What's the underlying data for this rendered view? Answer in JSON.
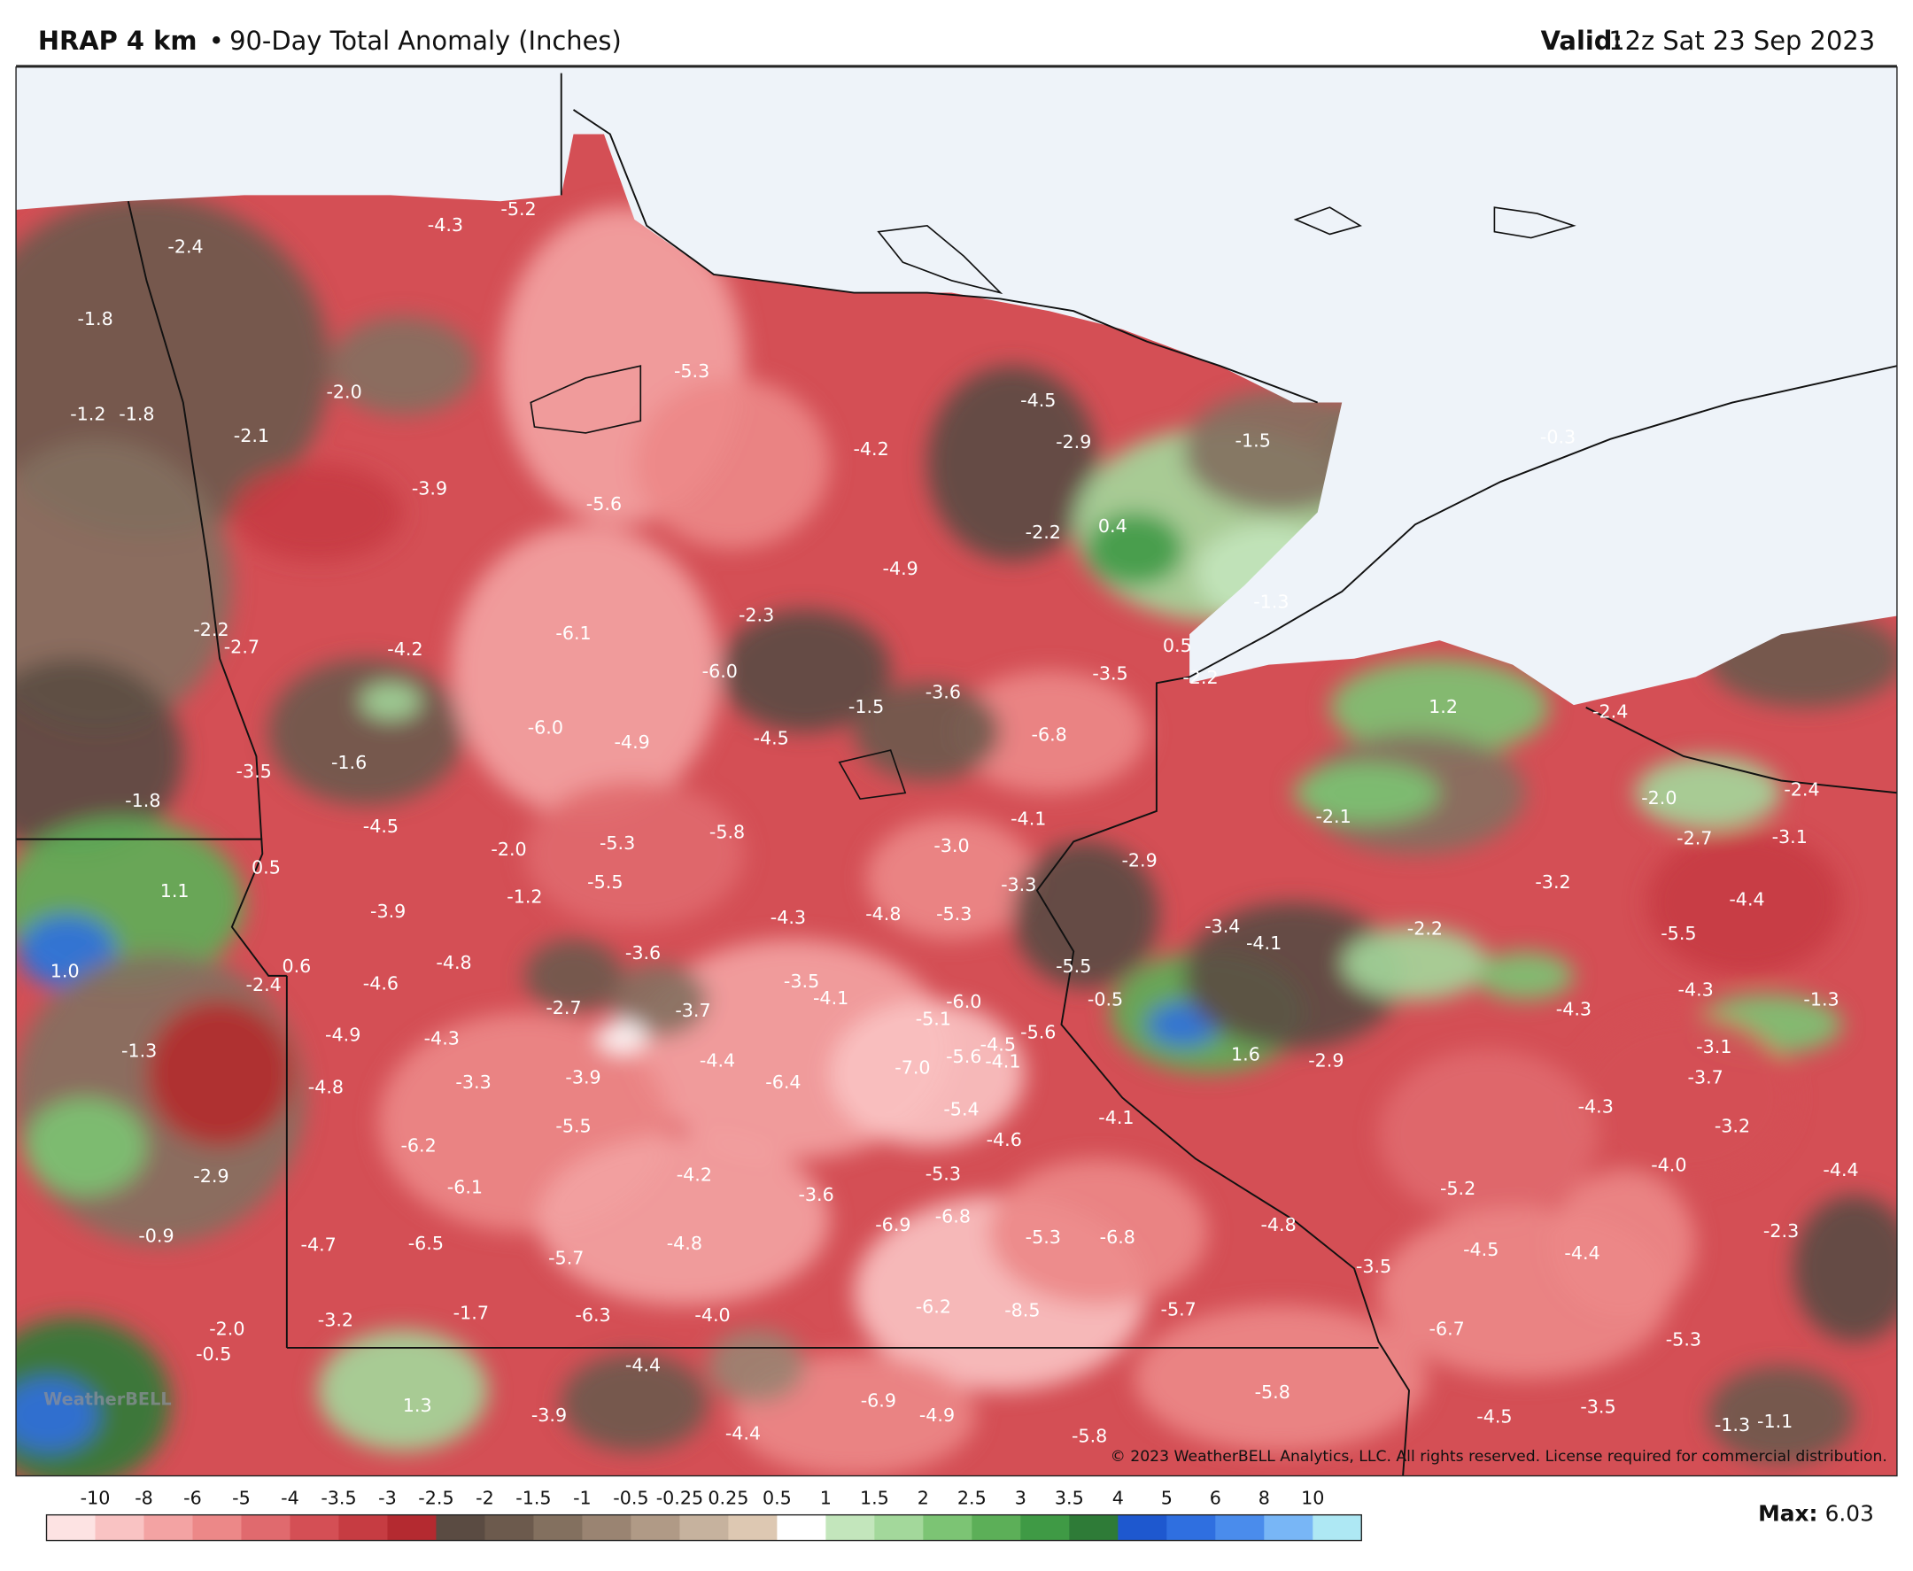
{
  "header": {
    "product": "HRAP 4 km",
    "separator": "•",
    "title": "90-Day Total Anomaly (Inches)",
    "valid_label": "Valid:",
    "valid_value": "12z Sat 23 Sep 2023"
  },
  "map": {
    "labels": [
      "-4.3",
      "-5.2",
      "-2.4",
      "-1.8",
      "-2.0",
      "-5.3",
      "-4.5",
      "-1.2",
      "-1.8",
      "-2.1",
      "-4.2",
      "-2.9",
      "-1.5",
      "-0.3",
      "-3.9",
      "-5.6",
      "-2.2",
      "0.4",
      "-4.9",
      "-1.3",
      "-2.3",
      "-2.2",
      "-2.7",
      "-4.2",
      "-6.1",
      "0.5",
      "-6.0",
      "-2.2",
      "-3.5",
      "-3.6",
      "-1.5",
      "1.2",
      "-2.4",
      "-6.0",
      "-4.9",
      "-4.5",
      "-6.8",
      "-3.5",
      "-1.6",
      "-2.0",
      "-2.4",
      "-1.8",
      "-4.1",
      "-2.1",
      "-4.5",
      "-5.8",
      "-2.7",
      "-3.1",
      "-2.0",
      "-5.3",
      "-3.0",
      "0.5",
      "-2.9",
      "-3.2",
      "1.1",
      "-1.2",
      "-5.5",
      "-3.3",
      "-4.4",
      "-3.9",
      "-4.3",
      "-4.8",
      "-5.3",
      "-3.4",
      "-4.1",
      "-2.2",
      "-5.5",
      "-3.6",
      "-4.8",
      "0.6",
      "-5.5",
      "1.0",
      "-2.4",
      "-4.6",
      "-3.5",
      "-4.1",
      "-0.5",
      "-4.3",
      "-4.3",
      "-1.3",
      "-2.7",
      "-3.7",
      "-6.0",
      "-5.1",
      "-5.6",
      "-4.9",
      "-4.3",
      "-4.5",
      "-1.3",
      "-3.1",
      "-5.6",
      "-4.1",
      "1.6",
      "-2.9",
      "-4.4",
      "-7.0",
      "-3.7",
      "-4.8",
      "-3.3",
      "-3.9",
      "-6.4",
      "-5.4",
      "-4.1",
      "-4.3",
      "-3.2",
      "-5.5",
      "-6.2",
      "-4.6",
      "-2.9",
      "-6.1",
      "-4.2",
      "-3.6",
      "-5.3",
      "-5.2",
      "-4.0",
      "-4.4",
      "-6.9",
      "-6.8",
      "-4.8",
      "-2.3",
      "-0.9",
      "-4.7",
      "-6.5",
      "-5.7",
      "-4.8",
      "-5.3",
      "-6.8",
      "-4.5",
      "-4.4",
      "-3.5",
      "-2.0",
      "-3.2",
      "-1.7",
      "-6.3",
      "-4.0",
      "-6.2",
      "-8.5",
      "-5.7",
      "-6.7",
      "-5.3",
      "-0.5",
      "-4.4",
      "1.3",
      "-6.9",
      "-5.8",
      "-3.9",
      "-4.9",
      "-4.5",
      "-3.5",
      "-1.3",
      "-1.1",
      "-4.4",
      "-5.8"
    ],
    "copyright": "© 2023 WeatherBELL Analytics, LLC. All rights reserved. License required for commercial distribution.",
    "watermark": "WeatherBELL"
  },
  "colorbar": {
    "ticks": [
      -10,
      -8,
      -6,
      -5,
      -4,
      -3.5,
      -3,
      -2.5,
      -2,
      -1.5,
      -1,
      -0.5,
      -0.25,
      0.25,
      0.5,
      1,
      1.5,
      2,
      2.5,
      3,
      3.5,
      4,
      5,
      6,
      8,
      10
    ],
    "colors": [
      "#fde3e3",
      "#f9c3c3",
      "#f3a3a3",
      "#ec8888",
      "#e06a6e",
      "#d44f55",
      "#c63c42",
      "#b42a30",
      "#5a4b42",
      "#6c5a4d",
      "#83705f",
      "#9a8472",
      "#b09a86",
      "#c6b29e",
      "#ddc8b2",
      "#ffffff",
      "#c3e6bc",
      "#a3d89b",
      "#7cc474",
      "#5caf58",
      "#3f9a45",
      "#2e7b37",
      "#1e58cf",
      "#2f6fe0",
      "#4a8cec",
      "#78b6f6",
      "#aee8f4"
    ]
  },
  "max": {
    "label": "Max:",
    "value": 6.03
  }
}
